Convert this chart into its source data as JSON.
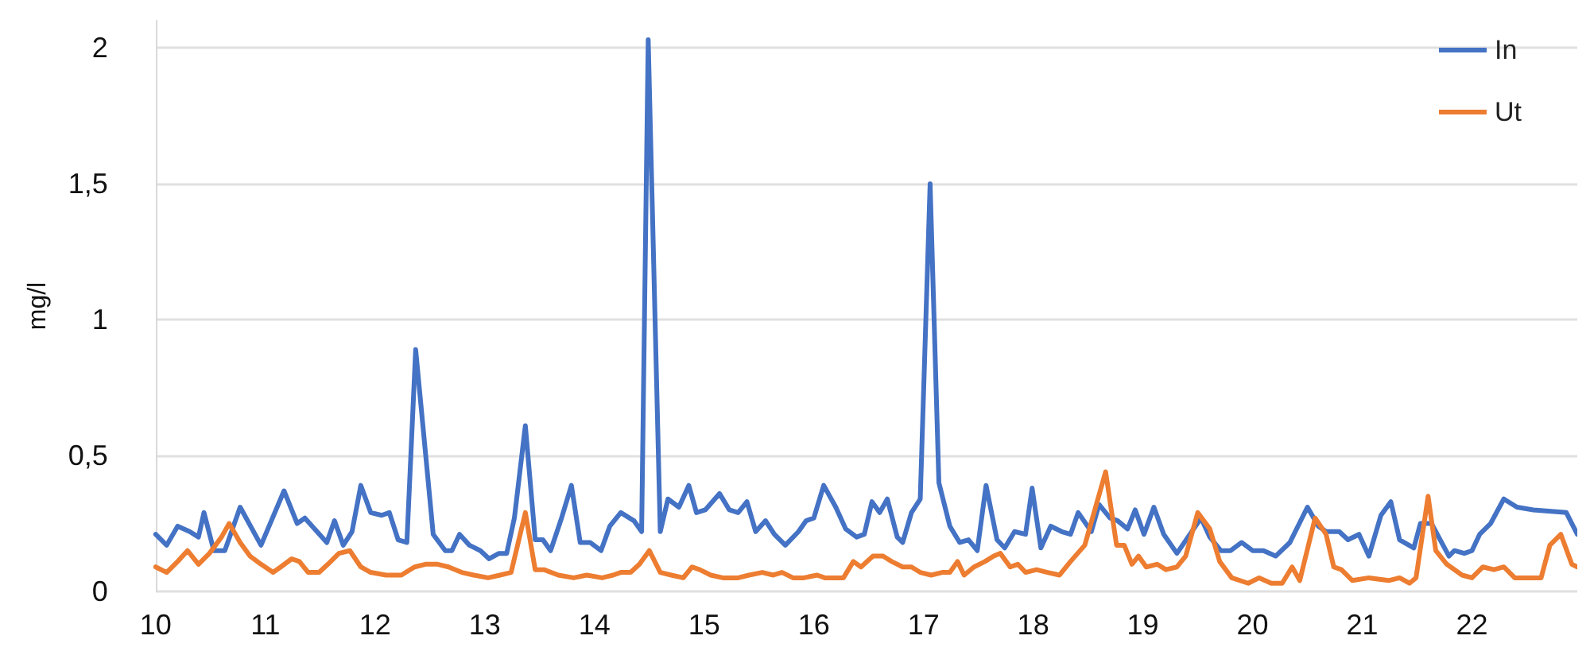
{
  "chart_data": {
    "type": "line",
    "ylabel": "mg/l",
    "xlim": [
      10,
      22.96
    ],
    "xticks": [
      10,
      11,
      12,
      13,
      14,
      15,
      16,
      17,
      18,
      19,
      20,
      21,
      22
    ],
    "ylim": [
      0,
      2.1
    ],
    "yticks": [
      0,
      {
        "value": 0.5,
        "label": "0,5"
      },
      1,
      {
        "value": 1.5,
        "label": "1,5"
      },
      2
    ],
    "grid": "y",
    "legend": "top right",
    "marker": "none",
    "line_style": "solid",
    "series": [
      {
        "name": "In",
        "color": "#4472c4",
        "x": [
          10.0,
          10.1,
          10.2,
          10.31,
          10.39,
          10.44,
          10.53,
          10.63,
          10.77,
          10.96,
          11.17,
          11.29,
          11.36,
          11.56,
          11.63,
          11.71,
          11.79,
          11.87,
          11.96,
          12.06,
          12.13,
          12.21,
          12.29,
          12.37,
          12.53,
          12.64,
          12.7,
          12.77,
          12.86,
          12.96,
          13.04,
          13.13,
          13.2,
          13.27,
          13.37,
          13.46,
          13.53,
          13.6,
          13.7,
          13.79,
          13.87,
          13.96,
          14.06,
          14.14,
          14.24,
          14.36,
          14.43,
          14.49,
          14.6,
          14.67,
          14.77,
          14.86,
          14.93,
          15.01,
          15.14,
          15.23,
          15.31,
          15.39,
          15.47,
          15.56,
          15.64,
          15.74,
          15.86,
          15.93,
          16.0,
          16.09,
          16.2,
          16.29,
          16.39,
          16.46,
          16.53,
          16.6,
          16.67,
          16.76,
          16.81,
          16.89,
          16.97,
          17.06,
          17.14,
          17.24,
          17.33,
          17.41,
          17.49,
          17.57,
          17.67,
          17.74,
          17.83,
          17.93,
          17.99,
          18.07,
          18.16,
          18.26,
          18.34,
          18.41,
          18.53,
          18.6,
          18.7,
          18.77,
          18.86,
          18.93,
          19.01,
          19.1,
          19.19,
          19.31,
          19.53,
          19.61,
          19.71,
          19.8,
          19.9,
          20.0,
          20.1,
          20.21,
          20.34,
          20.5,
          20.6,
          20.67,
          20.79,
          20.87,
          20.97,
          21.06,
          21.17,
          21.26,
          21.34,
          21.47,
          21.53,
          21.63,
          21.79,
          21.84,
          21.93,
          22.0,
          22.07,
          22.17,
          22.29,
          22.41,
          22.56,
          22.86,
          22.96
        ],
        "values": [
          0.21,
          0.17,
          0.24,
          0.22,
          0.2,
          0.29,
          0.15,
          0.15,
          0.31,
          0.17,
          0.37,
          0.25,
          0.27,
          0.18,
          0.26,
          0.17,
          0.22,
          0.39,
          0.29,
          0.28,
          0.29,
          0.19,
          0.18,
          0.89,
          0.21,
          0.15,
          0.15,
          0.21,
          0.17,
          0.15,
          0.12,
          0.14,
          0.14,
          0.27,
          0.61,
          0.19,
          0.19,
          0.15,
          0.27,
          0.39,
          0.18,
          0.18,
          0.15,
          0.24,
          0.29,
          0.26,
          0.22,
          2.03,
          0.22,
          0.34,
          0.31,
          0.39,
          0.29,
          0.3,
          0.36,
          0.3,
          0.29,
          0.33,
          0.22,
          0.26,
          0.21,
          0.17,
          0.22,
          0.26,
          0.27,
          0.39,
          0.31,
          0.23,
          0.2,
          0.21,
          0.33,
          0.29,
          0.34,
          0.2,
          0.18,
          0.29,
          0.34,
          1.5,
          0.4,
          0.24,
          0.18,
          0.19,
          0.15,
          0.39,
          0.19,
          0.16,
          0.22,
          0.21,
          0.38,
          0.16,
          0.24,
          0.22,
          0.21,
          0.29,
          0.22,
          0.32,
          0.27,
          0.26,
          0.23,
          0.3,
          0.21,
          0.31,
          0.21,
          0.14,
          0.27,
          0.2,
          0.15,
          0.15,
          0.18,
          0.15,
          0.15,
          0.13,
          0.18,
          0.31,
          0.24,
          0.22,
          0.22,
          0.19,
          0.21,
          0.13,
          0.28,
          0.33,
          0.19,
          0.16,
          0.25,
          0.25,
          0.13,
          0.15,
          0.14,
          0.15,
          0.21,
          0.25,
          0.34,
          0.31,
          0.3,
          0.29,
          0.21
        ]
      },
      {
        "name": "Ut",
        "color": "#ed7d31",
        "x": [
          10.0,
          10.1,
          10.2,
          10.29,
          10.39,
          10.49,
          10.6,
          10.67,
          10.77,
          10.86,
          10.96,
          11.07,
          11.14,
          11.24,
          11.31,
          11.39,
          11.49,
          11.57,
          11.67,
          11.77,
          11.87,
          11.96,
          12.1,
          12.24,
          12.36,
          12.46,
          12.57,
          12.67,
          12.79,
          12.9,
          13.03,
          13.14,
          13.24,
          13.37,
          13.46,
          13.54,
          13.67,
          13.81,
          13.93,
          14.07,
          14.17,
          14.24,
          14.33,
          14.41,
          14.5,
          14.6,
          14.7,
          14.81,
          14.89,
          14.96,
          15.06,
          15.17,
          15.31,
          15.41,
          15.53,
          15.63,
          15.71,
          15.81,
          15.91,
          16.03,
          16.1,
          16.27,
          16.36,
          16.43,
          16.54,
          16.63,
          16.71,
          16.81,
          16.89,
          16.97,
          17.07,
          17.17,
          17.24,
          17.31,
          17.37,
          17.46,
          17.56,
          17.64,
          17.7,
          17.79,
          17.86,
          17.93,
          18.03,
          18.13,
          18.24,
          18.34,
          18.47,
          18.66,
          18.76,
          18.83,
          18.9,
          18.96,
          19.03,
          19.13,
          19.21,
          19.31,
          19.39,
          19.5,
          19.61,
          19.7,
          19.81,
          19.96,
          20.06,
          20.17,
          20.27,
          20.36,
          20.43,
          20.57,
          20.67,
          20.74,
          20.81,
          20.91,
          21.06,
          21.24,
          21.34,
          21.43,
          21.49,
          21.6,
          21.67,
          21.77,
          21.91,
          22.0,
          22.1,
          22.2,
          22.29,
          22.39,
          22.53,
          22.63,
          22.71,
          22.81,
          22.91,
          22.96
        ],
        "values": [
          0.09,
          0.07,
          0.11,
          0.15,
          0.1,
          0.14,
          0.2,
          0.25,
          0.18,
          0.13,
          0.1,
          0.07,
          0.09,
          0.12,
          0.11,
          0.07,
          0.07,
          0.1,
          0.14,
          0.15,
          0.09,
          0.07,
          0.06,
          0.06,
          0.09,
          0.1,
          0.1,
          0.09,
          0.07,
          0.06,
          0.05,
          0.06,
          0.07,
          0.29,
          0.08,
          0.08,
          0.06,
          0.05,
          0.06,
          0.05,
          0.06,
          0.07,
          0.07,
          0.1,
          0.15,
          0.07,
          0.06,
          0.05,
          0.09,
          0.08,
          0.06,
          0.05,
          0.05,
          0.06,
          0.07,
          0.06,
          0.07,
          0.05,
          0.05,
          0.06,
          0.05,
          0.05,
          0.11,
          0.09,
          0.13,
          0.13,
          0.11,
          0.09,
          0.09,
          0.07,
          0.06,
          0.07,
          0.07,
          0.11,
          0.06,
          0.09,
          0.11,
          0.13,
          0.14,
          0.09,
          0.1,
          0.07,
          0.08,
          0.07,
          0.06,
          0.11,
          0.17,
          0.44,
          0.17,
          0.17,
          0.1,
          0.13,
          0.09,
          0.1,
          0.08,
          0.09,
          0.13,
          0.29,
          0.23,
          0.11,
          0.05,
          0.03,
          0.05,
          0.03,
          0.03,
          0.09,
          0.04,
          0.27,
          0.21,
          0.09,
          0.08,
          0.04,
          0.05,
          0.04,
          0.05,
          0.03,
          0.05,
          0.35,
          0.15,
          0.1,
          0.06,
          0.05,
          0.09,
          0.08,
          0.09,
          0.05,
          0.05,
          0.05,
          0.17,
          0.21,
          0.1,
          0.09
        ]
      }
    ]
  }
}
